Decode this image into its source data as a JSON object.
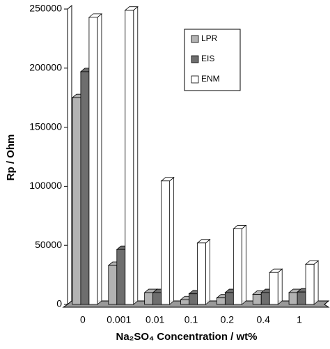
{
  "chart_data": {
    "type": "bar3d",
    "x_label": "Na₂SO₄ Concentration / wt%",
    "y_label": "Rp / Ohm",
    "categories": [
      "0",
      "0.001",
      "0.01",
      "0.1",
      "0.2",
      "0.4",
      "1"
    ],
    "series": [
      {
        "name": "LPR",
        "color": "#b3b3b3",
        "values": [
          175000,
          33000,
          10000,
          4000,
          5500,
          8500,
          10000
        ]
      },
      {
        "name": "EIS",
        "color": "#6e6e6e",
        "values": [
          197000,
          46500,
          10000,
          9000,
          10000,
          10000,
          10500
        ]
      },
      {
        "name": "ENM",
        "color": "#ffffff",
        "values": [
          243000,
          249000,
          104500,
          52000,
          64000,
          27000,
          34000
        ]
      }
    ],
    "ylim": [
      0,
      250000
    ],
    "yticks": [
      0,
      50000,
      100000,
      150000,
      200000,
      250000
    ],
    "legend": true
  }
}
